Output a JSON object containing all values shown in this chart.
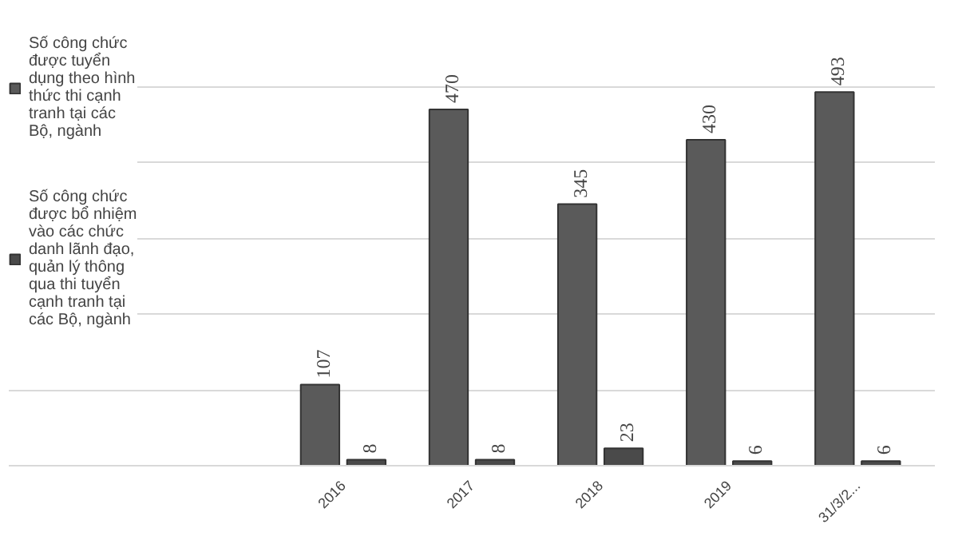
{
  "chart_data": {
    "type": "bar",
    "categories": [
      "2016",
      "2017",
      "2018",
      "2019",
      "31/3/2..."
    ],
    "series": [
      {
        "name": "Số công chức được tuyển dụng theo hình thức thi cạnh tranh tại các Bộ, ngành",
        "color": "#5a5a5a",
        "values": [
          107,
          470,
          345,
          430,
          493
        ]
      },
      {
        "name": "Số công chức được bổ nhiệm vào các chức danh lãnh đạo, quản lý thông qua thi tuyển cạnh tranh tại các Bộ, ngành",
        "color": "#4a4a4a",
        "values": [
          8,
          8,
          23,
          6,
          6
        ]
      }
    ],
    "data_labels": true,
    "tick_labels": "x",
    "grid": "y",
    "legend": "left"
  }
}
